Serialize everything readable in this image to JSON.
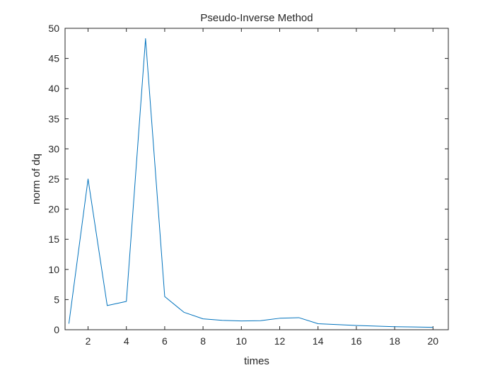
{
  "chart_data": {
    "type": "line",
    "title": "Pseudo-Inverse Method",
    "xlabel": "times",
    "ylabel": "norm of dq",
    "xlim": [
      0.8,
      20.8
    ],
    "ylim": [
      0,
      50
    ],
    "xticks": [
      2,
      4,
      6,
      8,
      10,
      12,
      14,
      16,
      18,
      20
    ],
    "yticks": [
      0,
      5,
      10,
      15,
      20,
      25,
      30,
      35,
      40,
      45,
      50
    ],
    "grid": false,
    "box": true,
    "series": [
      {
        "color": "#0072bd",
        "x": [
          1,
          2,
          3,
          4,
          5,
          6,
          7,
          8,
          9,
          10,
          11,
          12,
          13,
          14,
          15,
          16,
          17,
          18,
          19,
          20
        ],
        "y": [
          1.0,
          25.0,
          4.0,
          4.7,
          48.3,
          5.5,
          2.9,
          1.8,
          1.55,
          1.45,
          1.5,
          1.9,
          2.0,
          1.0,
          0.85,
          0.7,
          0.6,
          0.5,
          0.45,
          0.4
        ]
      }
    ]
  }
}
